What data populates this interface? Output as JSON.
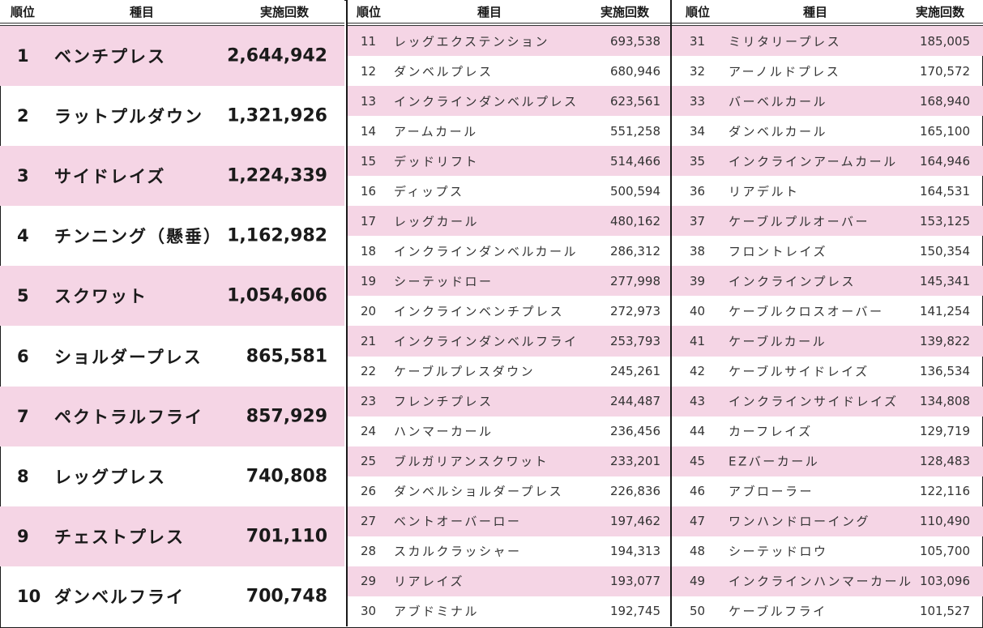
{
  "headers": {
    "rank": "順位",
    "item": "種目",
    "count": "実施回数"
  },
  "colors": {
    "row_highlight": "#f5d5e5",
    "border": "#1a1a1a",
    "text": "#1a1a1a"
  },
  "top10": [
    {
      "rank": "1",
      "name": "ベンチプレス",
      "count": "2,644,942"
    },
    {
      "rank": "2",
      "name": "ラットプルダウン",
      "count": "1,321,926"
    },
    {
      "rank": "3",
      "name": "サイドレイズ",
      "count": "1,224,339"
    },
    {
      "rank": "4",
      "name": "チンニング（懸垂）",
      "count": "1,162,982"
    },
    {
      "rank": "5",
      "name": "スクワット",
      "count": "1,054,606"
    },
    {
      "rank": "6",
      "name": "ショルダープレス",
      "count": "865,581"
    },
    {
      "rank": "7",
      "name": "ペクトラルフライ",
      "count": "857,929"
    },
    {
      "rank": "8",
      "name": "レッグプレス",
      "count": "740,808"
    },
    {
      "rank": "9",
      "name": "チェストプレス",
      "count": "701,110"
    },
    {
      "rank": "10",
      "name": "ダンベルフライ",
      "count": "700,748"
    }
  ],
  "ranks11to30": [
    {
      "rank": "11",
      "name": "レッグエクステンション",
      "count": "693,538"
    },
    {
      "rank": "12",
      "name": "ダンベルプレス",
      "count": "680,946"
    },
    {
      "rank": "13",
      "name": "インクラインダンベルプレス",
      "count": "623,561"
    },
    {
      "rank": "14",
      "name": "アームカール",
      "count": "551,258"
    },
    {
      "rank": "15",
      "name": "デッドリフト",
      "count": "514,466"
    },
    {
      "rank": "16",
      "name": "ディップス",
      "count": "500,594"
    },
    {
      "rank": "17",
      "name": "レッグカール",
      "count": "480,162"
    },
    {
      "rank": "18",
      "name": "インクラインダンベルカール",
      "count": "286,312"
    },
    {
      "rank": "19",
      "name": "シーテッドロー",
      "count": "277,998"
    },
    {
      "rank": "20",
      "name": "インクラインベンチプレス",
      "count": "272,973"
    },
    {
      "rank": "21",
      "name": "インクラインダンベルフライ",
      "count": "253,793"
    },
    {
      "rank": "22",
      "name": "ケーブルプレスダウン",
      "count": "245,261"
    },
    {
      "rank": "23",
      "name": "フレンチプレス",
      "count": "244,487"
    },
    {
      "rank": "24",
      "name": "ハンマーカール",
      "count": "236,456"
    },
    {
      "rank": "25",
      "name": "ブルガリアンスクワット",
      "count": "233,201"
    },
    {
      "rank": "26",
      "name": "ダンベルショルダープレス",
      "count": "226,836"
    },
    {
      "rank": "27",
      "name": "ベントオーバーロー",
      "count": "197,462"
    },
    {
      "rank": "28",
      "name": "スカルクラッシャー",
      "count": "194,313"
    },
    {
      "rank": "29",
      "name": "リアレイズ",
      "count": "193,077"
    },
    {
      "rank": "30",
      "name": "アブドミナル",
      "count": "192,745"
    }
  ],
  "ranks31to50": [
    {
      "rank": "31",
      "name": "ミリタリープレス",
      "count": "185,005"
    },
    {
      "rank": "32",
      "name": "アーノルドプレス",
      "count": "170,572"
    },
    {
      "rank": "33",
      "name": "バーベルカール",
      "count": "168,940"
    },
    {
      "rank": "34",
      "name": "ダンベルカール",
      "count": "165,100"
    },
    {
      "rank": "35",
      "name": "インクラインアームカール",
      "count": "164,946"
    },
    {
      "rank": "36",
      "name": "リアデルト",
      "count": "164,531"
    },
    {
      "rank": "37",
      "name": "ケーブルプルオーバー",
      "count": "153,125"
    },
    {
      "rank": "38",
      "name": "フロントレイズ",
      "count": "150,354"
    },
    {
      "rank": "39",
      "name": "インクラインプレス",
      "count": "145,341"
    },
    {
      "rank": "40",
      "name": "ケーブルクロスオーバー",
      "count": "141,254"
    },
    {
      "rank": "41",
      "name": "ケーブルカール",
      "count": "139,822"
    },
    {
      "rank": "42",
      "name": "ケーブルサイドレイズ",
      "count": "136,534"
    },
    {
      "rank": "43",
      "name": "インクラインサイドレイズ",
      "count": "134,808"
    },
    {
      "rank": "44",
      "name": "カーフレイズ",
      "count": "129,719"
    },
    {
      "rank": "45",
      "name": "EZバーカール",
      "count": "128,483"
    },
    {
      "rank": "46",
      "name": "アブローラー",
      "count": "122,116"
    },
    {
      "rank": "47",
      "name": "ワンハンドローイング",
      "count": "110,490"
    },
    {
      "rank": "48",
      "name": "シーテッドロウ",
      "count": "105,700"
    },
    {
      "rank": "49",
      "name": "インクラインハンマーカール",
      "count": "103,096"
    },
    {
      "rank": "50",
      "name": "ケーブルフライ",
      "count": "101,527"
    }
  ]
}
